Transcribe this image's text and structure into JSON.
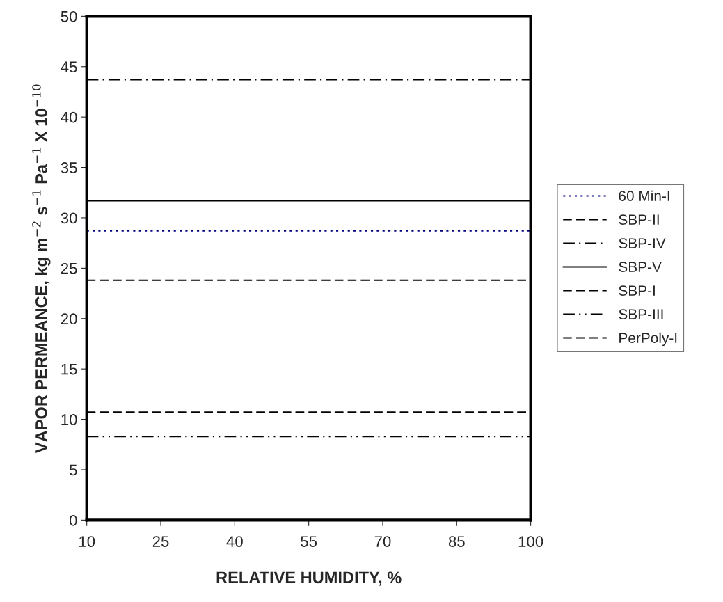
{
  "chart_data": {
    "type": "line",
    "xlabel": "RELATIVE HUMIDITY, %",
    "ylabel": "VAPOR PERMEANCE, kg m$^{−2}$ s$^{−1}$ Pa$^{−1}$ X 10$^{−10}$",
    "x": [
      10,
      100
    ],
    "series": [
      {
        "name": "60 Min-I",
        "color": "#000080",
        "values": [
          28.7,
          28.7
        ],
        "line_style": "dotted"
      },
      {
        "name": "SBP-II",
        "color": "#000000",
        "values": [
          23.8,
          23.8
        ],
        "line_style": "dashed"
      },
      {
        "name": "SBP-IV",
        "color": "#000000",
        "values": [
          43.7,
          43.7
        ],
        "line_style": "dashdot"
      },
      {
        "name": "SBP-V",
        "color": "#000000",
        "values": [
          31.7,
          31.7
        ],
        "line_style": "solid"
      },
      {
        "name": "SBP-I",
        "color": "#000000",
        "values": [
          10.7,
          10.7
        ],
        "line_style": "dashed"
      },
      {
        "name": "SBP-III",
        "color": "#000000",
        "values": [
          8.3,
          8.3
        ],
        "line_style": "dashdotdot"
      },
      {
        "name": "PerPoly-I",
        "color": "#000000",
        "values": [
          10.7,
          10.7
        ],
        "line_style": "dashed"
      }
    ],
    "xlim": [
      10,
      100
    ],
    "xticks": [
      10,
      25,
      40,
      55,
      70,
      85,
      100
    ],
    "ylim": [
      0,
      50
    ],
    "yticks": [
      0,
      5,
      10,
      15,
      20,
      25,
      30,
      35,
      40,
      45,
      50
    ],
    "grid": false,
    "legend": "right",
    "marker": "none"
  }
}
